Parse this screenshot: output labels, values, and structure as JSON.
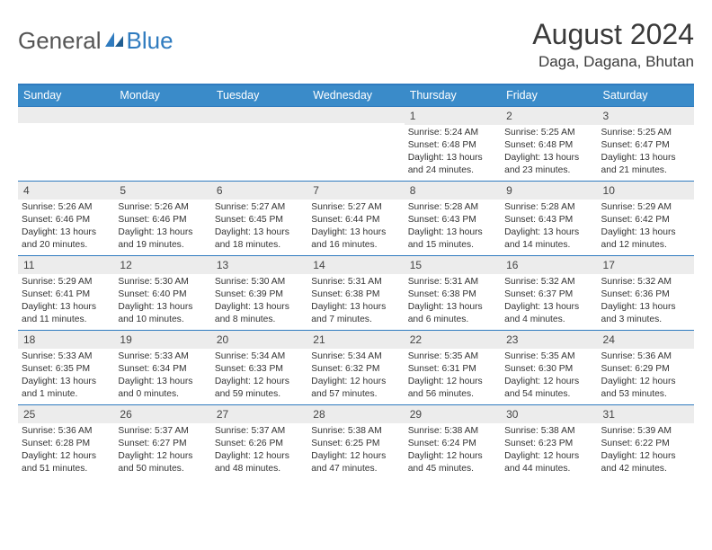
{
  "logo": {
    "text1": "General",
    "text2": "Blue"
  },
  "title": "August 2024",
  "location": "Daga, Dagana, Bhutan",
  "colors": {
    "header_bg": "#3a8bc9",
    "border": "#2f7bbf",
    "daynum_bg": "#ececec",
    "text": "#333333",
    "logo_gray": "#555555",
    "logo_blue": "#2f7bbf"
  },
  "weekdays": [
    "Sunday",
    "Monday",
    "Tuesday",
    "Wednesday",
    "Thursday",
    "Friday",
    "Saturday"
  ],
  "weeks": [
    [
      {
        "n": "",
        "sunrise": "",
        "sunset": "",
        "daylight": ""
      },
      {
        "n": "",
        "sunrise": "",
        "sunset": "",
        "daylight": ""
      },
      {
        "n": "",
        "sunrise": "",
        "sunset": "",
        "daylight": ""
      },
      {
        "n": "",
        "sunrise": "",
        "sunset": "",
        "daylight": ""
      },
      {
        "n": "1",
        "sunrise": "Sunrise: 5:24 AM",
        "sunset": "Sunset: 6:48 PM",
        "daylight": "Daylight: 13 hours and 24 minutes."
      },
      {
        "n": "2",
        "sunrise": "Sunrise: 5:25 AM",
        "sunset": "Sunset: 6:48 PM",
        "daylight": "Daylight: 13 hours and 23 minutes."
      },
      {
        "n": "3",
        "sunrise": "Sunrise: 5:25 AM",
        "sunset": "Sunset: 6:47 PM",
        "daylight": "Daylight: 13 hours and 21 minutes."
      }
    ],
    [
      {
        "n": "4",
        "sunrise": "Sunrise: 5:26 AM",
        "sunset": "Sunset: 6:46 PM",
        "daylight": "Daylight: 13 hours and 20 minutes."
      },
      {
        "n": "5",
        "sunrise": "Sunrise: 5:26 AM",
        "sunset": "Sunset: 6:46 PM",
        "daylight": "Daylight: 13 hours and 19 minutes."
      },
      {
        "n": "6",
        "sunrise": "Sunrise: 5:27 AM",
        "sunset": "Sunset: 6:45 PM",
        "daylight": "Daylight: 13 hours and 18 minutes."
      },
      {
        "n": "7",
        "sunrise": "Sunrise: 5:27 AM",
        "sunset": "Sunset: 6:44 PM",
        "daylight": "Daylight: 13 hours and 16 minutes."
      },
      {
        "n": "8",
        "sunrise": "Sunrise: 5:28 AM",
        "sunset": "Sunset: 6:43 PM",
        "daylight": "Daylight: 13 hours and 15 minutes."
      },
      {
        "n": "9",
        "sunrise": "Sunrise: 5:28 AM",
        "sunset": "Sunset: 6:43 PM",
        "daylight": "Daylight: 13 hours and 14 minutes."
      },
      {
        "n": "10",
        "sunrise": "Sunrise: 5:29 AM",
        "sunset": "Sunset: 6:42 PM",
        "daylight": "Daylight: 13 hours and 12 minutes."
      }
    ],
    [
      {
        "n": "11",
        "sunrise": "Sunrise: 5:29 AM",
        "sunset": "Sunset: 6:41 PM",
        "daylight": "Daylight: 13 hours and 11 minutes."
      },
      {
        "n": "12",
        "sunrise": "Sunrise: 5:30 AM",
        "sunset": "Sunset: 6:40 PM",
        "daylight": "Daylight: 13 hours and 10 minutes."
      },
      {
        "n": "13",
        "sunrise": "Sunrise: 5:30 AM",
        "sunset": "Sunset: 6:39 PM",
        "daylight": "Daylight: 13 hours and 8 minutes."
      },
      {
        "n": "14",
        "sunrise": "Sunrise: 5:31 AM",
        "sunset": "Sunset: 6:38 PM",
        "daylight": "Daylight: 13 hours and 7 minutes."
      },
      {
        "n": "15",
        "sunrise": "Sunrise: 5:31 AM",
        "sunset": "Sunset: 6:38 PM",
        "daylight": "Daylight: 13 hours and 6 minutes."
      },
      {
        "n": "16",
        "sunrise": "Sunrise: 5:32 AM",
        "sunset": "Sunset: 6:37 PM",
        "daylight": "Daylight: 13 hours and 4 minutes."
      },
      {
        "n": "17",
        "sunrise": "Sunrise: 5:32 AM",
        "sunset": "Sunset: 6:36 PM",
        "daylight": "Daylight: 13 hours and 3 minutes."
      }
    ],
    [
      {
        "n": "18",
        "sunrise": "Sunrise: 5:33 AM",
        "sunset": "Sunset: 6:35 PM",
        "daylight": "Daylight: 13 hours and 1 minute."
      },
      {
        "n": "19",
        "sunrise": "Sunrise: 5:33 AM",
        "sunset": "Sunset: 6:34 PM",
        "daylight": "Daylight: 13 hours and 0 minutes."
      },
      {
        "n": "20",
        "sunrise": "Sunrise: 5:34 AM",
        "sunset": "Sunset: 6:33 PM",
        "daylight": "Daylight: 12 hours and 59 minutes."
      },
      {
        "n": "21",
        "sunrise": "Sunrise: 5:34 AM",
        "sunset": "Sunset: 6:32 PM",
        "daylight": "Daylight: 12 hours and 57 minutes."
      },
      {
        "n": "22",
        "sunrise": "Sunrise: 5:35 AM",
        "sunset": "Sunset: 6:31 PM",
        "daylight": "Daylight: 12 hours and 56 minutes."
      },
      {
        "n": "23",
        "sunrise": "Sunrise: 5:35 AM",
        "sunset": "Sunset: 6:30 PM",
        "daylight": "Daylight: 12 hours and 54 minutes."
      },
      {
        "n": "24",
        "sunrise": "Sunrise: 5:36 AM",
        "sunset": "Sunset: 6:29 PM",
        "daylight": "Daylight: 12 hours and 53 minutes."
      }
    ],
    [
      {
        "n": "25",
        "sunrise": "Sunrise: 5:36 AM",
        "sunset": "Sunset: 6:28 PM",
        "daylight": "Daylight: 12 hours and 51 minutes."
      },
      {
        "n": "26",
        "sunrise": "Sunrise: 5:37 AM",
        "sunset": "Sunset: 6:27 PM",
        "daylight": "Daylight: 12 hours and 50 minutes."
      },
      {
        "n": "27",
        "sunrise": "Sunrise: 5:37 AM",
        "sunset": "Sunset: 6:26 PM",
        "daylight": "Daylight: 12 hours and 48 minutes."
      },
      {
        "n": "28",
        "sunrise": "Sunrise: 5:38 AM",
        "sunset": "Sunset: 6:25 PM",
        "daylight": "Daylight: 12 hours and 47 minutes."
      },
      {
        "n": "29",
        "sunrise": "Sunrise: 5:38 AM",
        "sunset": "Sunset: 6:24 PM",
        "daylight": "Daylight: 12 hours and 45 minutes."
      },
      {
        "n": "30",
        "sunrise": "Sunrise: 5:38 AM",
        "sunset": "Sunset: 6:23 PM",
        "daylight": "Daylight: 12 hours and 44 minutes."
      },
      {
        "n": "31",
        "sunrise": "Sunrise: 5:39 AM",
        "sunset": "Sunset: 6:22 PM",
        "daylight": "Daylight: 12 hours and 42 minutes."
      }
    ]
  ]
}
